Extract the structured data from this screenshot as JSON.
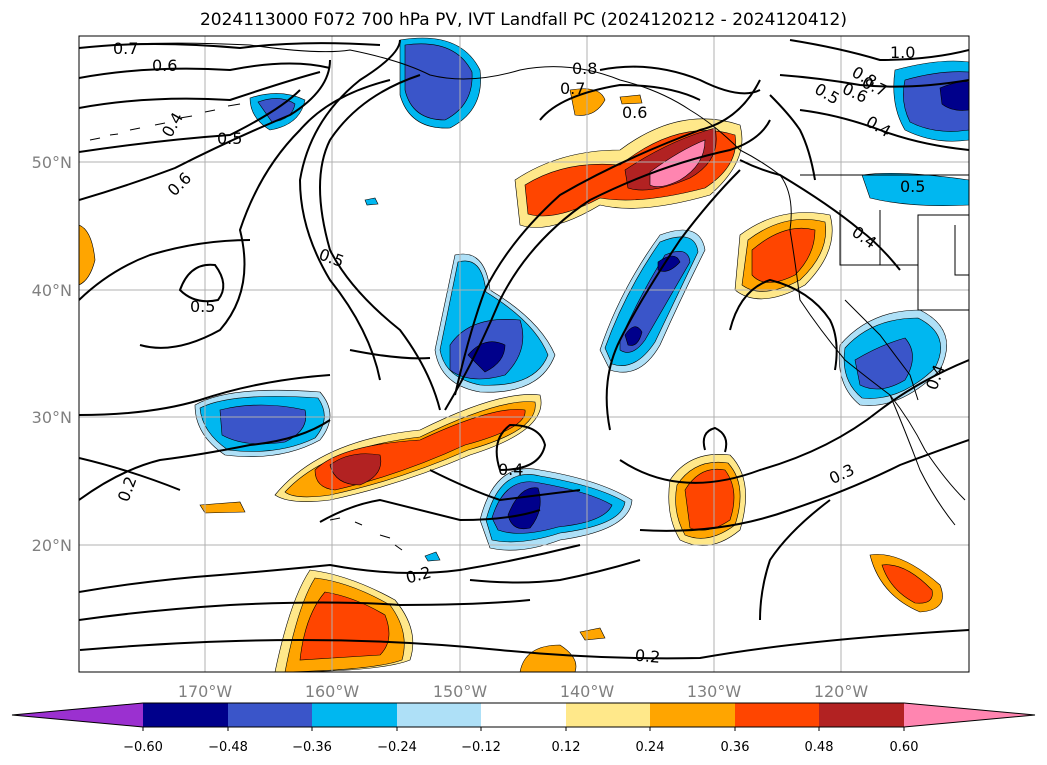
{
  "title": "2024113000 F072 700 hPa PV, IVT Landfall PC (2024120212 - 2024120412)",
  "axes": {
    "lat_labels": [
      "50°N",
      "40°N",
      "30°N",
      "20°N"
    ],
    "lon_labels": [
      "170°W",
      "160°W",
      "150°W",
      "140°W",
      "130°W",
      "120°W"
    ]
  },
  "contour_labels": [
    "0.7",
    "0.6",
    "0.4",
    "0.5",
    "0.6",
    "0.5",
    "0.5",
    "0.8",
    "0.7",
    "0.6",
    "1.0",
    "0.8",
    "0.5",
    "0.6",
    "0.7",
    "0.4",
    "0.5",
    "0.4",
    "0.4",
    "0.4",
    "0.3",
    "0.2",
    "0.2",
    "0.2"
  ],
  "colorbar": {
    "ticks": [
      "−0.60",
      "−0.48",
      "−0.36",
      "−0.24",
      "−0.12",
      "0.12",
      "0.24",
      "0.36",
      "0.48",
      "0.60"
    ],
    "colors": [
      "#9b30d0",
      "#00008b",
      "#3a55c9",
      "#00b7f0",
      "#aee0f7",
      "#ffffff",
      "#ffe88a",
      "#ffa500",
      "#ff4500",
      "#b22222",
      "#ff85b0"
    ]
  }
}
